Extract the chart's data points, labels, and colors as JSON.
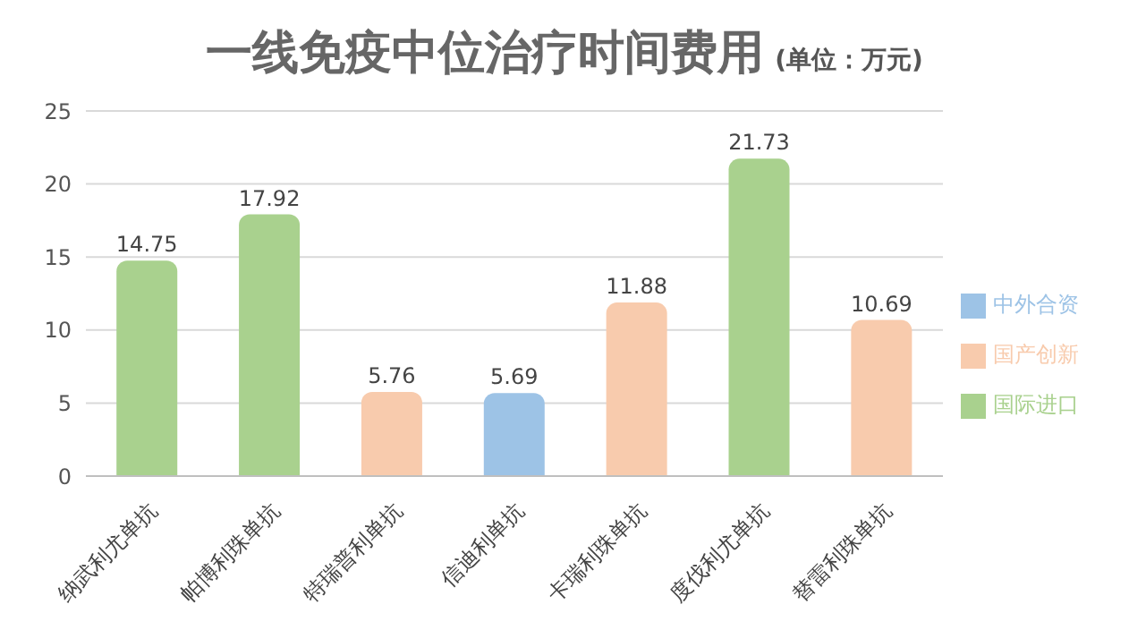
{
  "chart_data": {
    "type": "bar",
    "title": "一线免疫中位治疗时间费用",
    "subtitle": "(单位：万元)",
    "categories": [
      "纳武利尤单抗",
      "帕博利珠单抗",
      "特瑞普利单抗",
      "信迪利单抗",
      "卡瑞利珠单抗",
      "度伐利尤单抗",
      "替雷利珠单抗"
    ],
    "series": [
      {
        "name": "国际进口",
        "color": "#a9d18e",
        "values": [
          14.75,
          17.92,
          null,
          null,
          null,
          21.73,
          null
        ]
      },
      {
        "name": "中外合资",
        "color": "#9dc3e6",
        "values": [
          null,
          null,
          null,
          5.69,
          null,
          null,
          null
        ]
      },
      {
        "name": "国产创新",
        "color": "#f8cbad",
        "values": [
          null,
          null,
          5.76,
          null,
          11.88,
          null,
          10.69
        ]
      }
    ],
    "stacked": true,
    "data_labels": true,
    "ylim": [
      0,
      25
    ],
    "yticks": [
      0,
      5,
      10,
      15,
      20,
      25
    ],
    "grid": "y",
    "legend": "right"
  }
}
